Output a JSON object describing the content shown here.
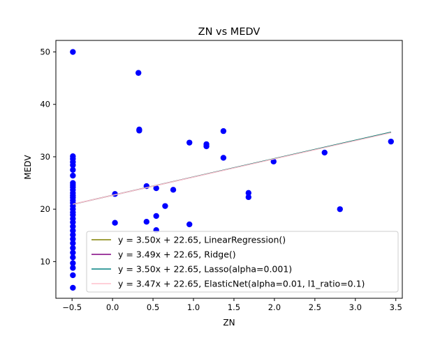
{
  "chart_data": {
    "type": "scatter",
    "title": "ZN vs MEDV",
    "xlabel": "ZN",
    "ylabel": "MEDV",
    "xlim": [
      -0.7,
      3.58
    ],
    "ylim": [
      3.0,
      52.2
    ],
    "x_ticks": [
      -0.5,
      0.0,
      0.5,
      1.0,
      1.5,
      2.0,
      2.5,
      3.0,
      3.5
    ],
    "x_tick_labels": [
      "−0.5",
      "0.0",
      "0.5",
      "1.0",
      "1.5",
      "2.0",
      "2.5",
      "3.0",
      "3.5"
    ],
    "y_ticks": [
      10,
      20,
      30,
      40,
      50
    ],
    "y_tick_labels": [
      "10",
      "20",
      "30",
      "40",
      "50"
    ],
    "grid": false,
    "legend_position": "lower-right",
    "scatter_color": "#0000ff",
    "points": [
      [
        -0.49,
        50.0
      ],
      [
        -0.49,
        30.1
      ],
      [
        -0.49,
        29.6
      ],
      [
        -0.49,
        29.0
      ],
      [
        -0.49,
        28.4
      ],
      [
        -0.49,
        27.5
      ],
      [
        -0.49,
        26.4
      ],
      [
        -0.49,
        25.0
      ],
      [
        -0.49,
        24.6
      ],
      [
        -0.49,
        24.2
      ],
      [
        -0.49,
        23.7
      ],
      [
        -0.49,
        23.1
      ],
      [
        -0.49,
        22.6
      ],
      [
        -0.49,
        22.2
      ],
      [
        -0.49,
        21.7
      ],
      [
        -0.49,
        21.2
      ],
      [
        -0.49,
        20.6
      ],
      [
        -0.49,
        20.0
      ],
      [
        -0.49,
        19.4
      ],
      [
        -0.49,
        18.9
      ],
      [
        -0.49,
        18.2
      ],
      [
        -0.49,
        17.5
      ],
      [
        -0.49,
        16.7
      ],
      [
        -0.49,
        15.9
      ],
      [
        -0.49,
        15.1
      ],
      [
        -0.49,
        14.3
      ],
      [
        -0.49,
        13.5
      ],
      [
        -0.49,
        12.6
      ],
      [
        -0.49,
        11.7
      ],
      [
        -0.49,
        10.8
      ],
      [
        -0.49,
        9.7
      ],
      [
        -0.49,
        8.8
      ],
      [
        -0.49,
        7.4
      ],
      [
        -0.49,
        5.0
      ],
      [
        0.03,
        22.9
      ],
      [
        0.03,
        17.4
      ],
      [
        0.32,
        46.0
      ],
      [
        0.33,
        35.2
      ],
      [
        0.33,
        35.0
      ],
      [
        0.42,
        24.4
      ],
      [
        0.42,
        17.6
      ],
      [
        0.54,
        24.0
      ],
      [
        0.54,
        18.7
      ],
      [
        0.54,
        16.0
      ],
      [
        0.65,
        20.6
      ],
      [
        0.75,
        23.7
      ],
      [
        0.95,
        32.7
      ],
      [
        0.95,
        17.1
      ],
      [
        1.16,
        32.4
      ],
      [
        1.16,
        32.0
      ],
      [
        1.37,
        34.9
      ],
      [
        1.37,
        29.8
      ],
      [
        1.68,
        23.1
      ],
      [
        1.68,
        22.3
      ],
      [
        1.99,
        29.1
      ],
      [
        2.62,
        30.8
      ],
      [
        2.81,
        20.0
      ],
      [
        3.44,
        32.9
      ]
    ],
    "series": [
      {
        "name": "y = 3.50x + 22.65, LinearRegression()",
        "slope": 3.5,
        "intercept": 22.65,
        "color": "#808000"
      },
      {
        "name": "y = 3.49x + 22.65, Ridge()",
        "slope": 3.49,
        "intercept": 22.65,
        "color": "#800080"
      },
      {
        "name": "y = 3.50x + 22.65, Lasso(alpha=0.001)",
        "slope": 3.5,
        "intercept": 22.65,
        "color": "#008080"
      },
      {
        "name": "y = 3.47x + 22.65, ElasticNet(alpha=0.01, l1_ratio=0.1)",
        "slope": 3.47,
        "intercept": 22.65,
        "color": "#ffc0cb"
      }
    ],
    "line_x_range": [
      -0.49,
      3.44
    ]
  }
}
